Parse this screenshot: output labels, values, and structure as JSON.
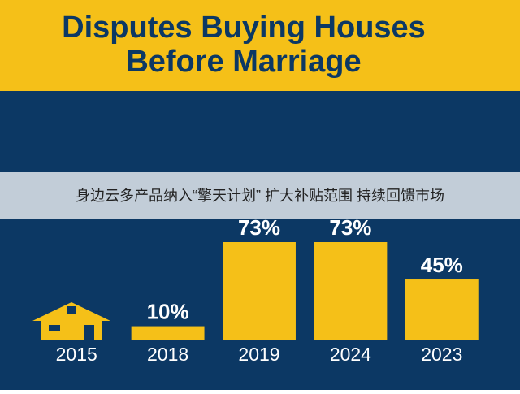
{
  "chart_data": {
    "type": "bar",
    "title": [
      "Disputes Buying Houses",
      "Before Marriage"
    ],
    "categories": [
      "2015",
      "2018",
      "2019",
      "2024",
      "2023"
    ],
    "values": [
      null,
      10,
      73,
      73,
      45
    ],
    "value_labels": [
      null,
      "10%",
      "73%",
      "73%",
      "45%"
    ],
    "color": "#f5c018"
  },
  "overlay": {
    "text": "身边云多产品纳入“擎天计划” 扩大补贴范围 持续回馈市场"
  }
}
